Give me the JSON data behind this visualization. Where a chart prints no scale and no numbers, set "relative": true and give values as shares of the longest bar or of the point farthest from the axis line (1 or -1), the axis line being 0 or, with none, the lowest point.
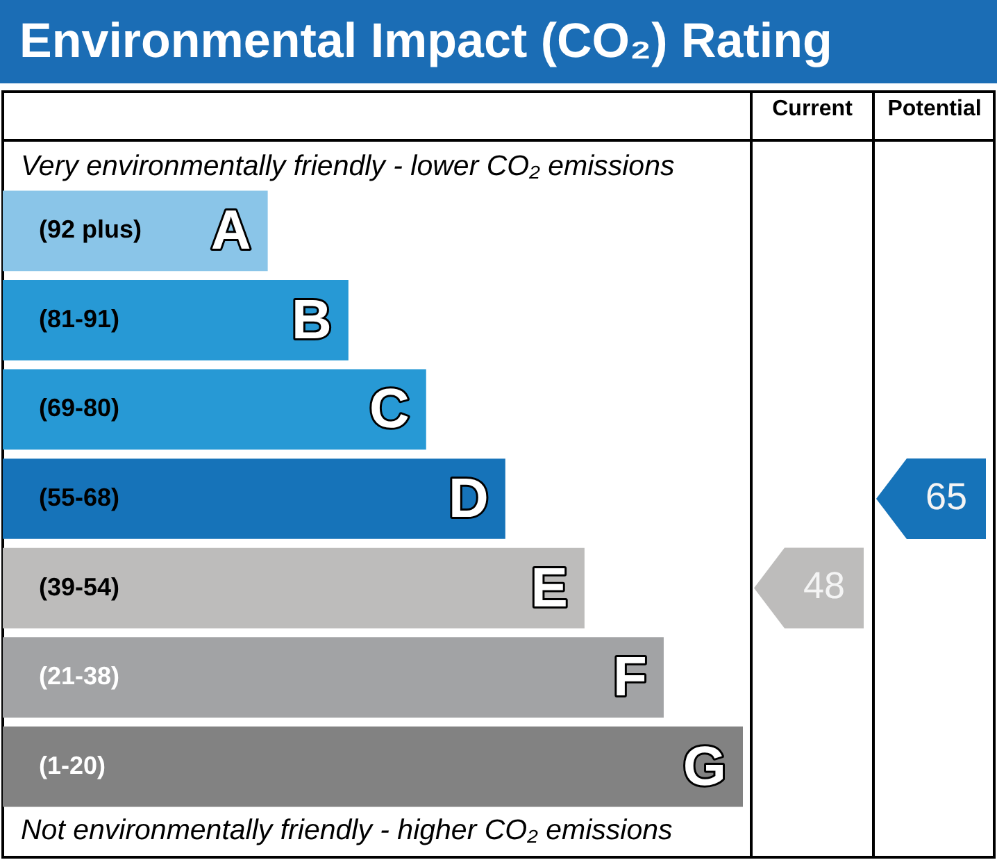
{
  "chart_data": {
    "type": "bar",
    "orientation": "horizontal",
    "relative": true,
    "title": "Environmental Impact (CO₂) Rating",
    "categories": [
      "A",
      "B",
      "C",
      "D",
      "E",
      "F",
      "G"
    ],
    "values": [
      0.358,
      0.467,
      0.572,
      0.679,
      0.786,
      0.893,
      1
    ],
    "colors": [
      "#8ac5e8",
      "#2799d5",
      "#2799d5",
      "#1673b9",
      "#bdbcbb",
      "#a2a3a5",
      "#828282"
    ],
    "annotations": [
      "Very environmentally friendly - lower CO₂ emissions",
      "Not environmentally friendly - higher CO₂ emissions",
      "Current",
      "Potential",
      "(92 plus)",
      "(81-91)",
      "(69-80)",
      "(55-68)",
      "(39-54)",
      "(21-38)",
      "(1-20)",
      "48",
      "65"
    ],
    "legend": false
  }
}
